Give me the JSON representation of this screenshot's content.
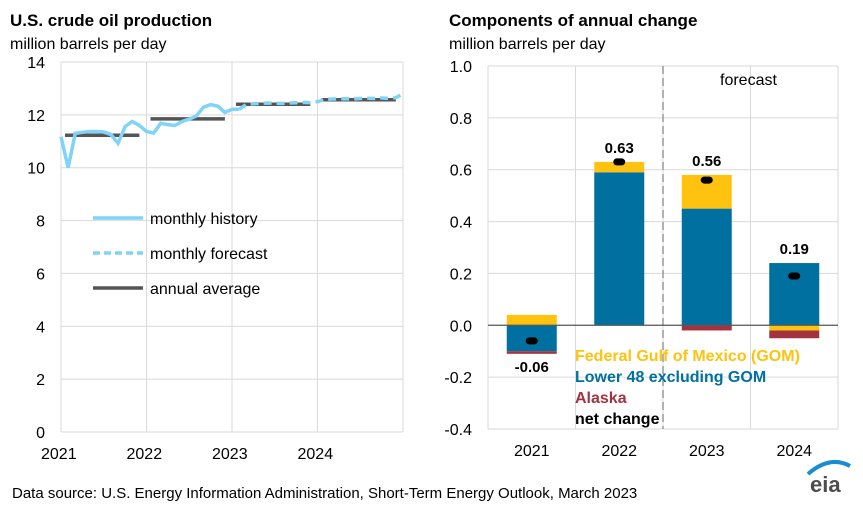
{
  "source": "Data source: U.S. Energy Information Administration, Short-Term Energy Outlook, March 2023",
  "logo_text": "eia",
  "colors": {
    "history": "#7fd4f8",
    "annual": "#555555",
    "gom": "#ffc20e",
    "lower48": "#0070a0",
    "alaska": "#a33340",
    "net": "#000000",
    "grid": "#d9d9d9"
  },
  "chart_data": [
    {
      "type": "line",
      "title": "U.S. crude oil production",
      "subtitle": "million barrels per day",
      "ylim": [
        0,
        14
      ],
      "yticks": [
        "0",
        "2",
        "4",
        "6",
        "8",
        "10",
        "12",
        "14"
      ],
      "xticks": [
        "2021",
        "2022",
        "2023",
        "2024"
      ],
      "grid": true,
      "legend_placement": "center-left",
      "series": [
        {
          "name": "monthly history",
          "style": "solid",
          "start": "2021-01",
          "values": [
            11.17,
            10.0,
            11.3,
            11.34,
            11.37,
            11.37,
            11.35,
            11.26,
            10.92,
            11.56,
            11.75,
            11.6,
            11.37,
            11.31,
            11.68,
            11.63,
            11.6,
            11.75,
            11.84,
            11.96,
            12.29,
            12.39,
            12.33,
            12.09,
            12.21,
            12.21
          ]
        },
        {
          "name": "monthly forecast",
          "style": "dashed",
          "start": "2023-02",
          "values": [
            12.21,
            12.39,
            12.42,
            12.43,
            12.45,
            12.44,
            12.43,
            12.45,
            12.46,
            12.47,
            12.46,
            12.5,
            12.58,
            12.6,
            12.6,
            12.61,
            12.6,
            12.62,
            12.63,
            12.62,
            12.64,
            12.62,
            12.65,
            12.8
          ]
        },
        {
          "name": "annual average",
          "style": "segments",
          "years": [
            "2021",
            "2022",
            "2023",
            "2024"
          ],
          "values": [
            11.23,
            11.85,
            12.4,
            12.57
          ]
        }
      ]
    },
    {
      "type": "bar",
      "title": "Components of annual change",
      "subtitle": "million barrels per day",
      "ylim": [
        -0.4,
        1.0
      ],
      "yticks": [
        "-0.4",
        "-0.2",
        "0.0",
        "0.2",
        "0.4",
        "0.6",
        "0.8",
        "1.0"
      ],
      "categories": [
        "2021",
        "2022",
        "2023",
        "2024"
      ],
      "forecast_label": "forecast",
      "forecast_starts_after": "2022",
      "grid": true,
      "legend_placement": "bottom-center",
      "series": [
        {
          "name": "Federal Gulf  of Mexico (GOM)",
          "values": [
            0.04,
            0.04,
            0.13,
            -0.02
          ]
        },
        {
          "name": "Lower 48 excluding GOM",
          "values": [
            -0.1,
            0.59,
            0.45,
            0.24
          ]
        },
        {
          "name": "Alaska",
          "values": [
            -0.01,
            0.0,
            -0.02,
            -0.03
          ]
        },
        {
          "name": "net change",
          "values": [
            -0.06,
            0.63,
            0.56,
            0.19
          ]
        }
      ],
      "data_labels": [
        "-0.06",
        "0.63",
        "0.56",
        "0.19"
      ]
    }
  ]
}
